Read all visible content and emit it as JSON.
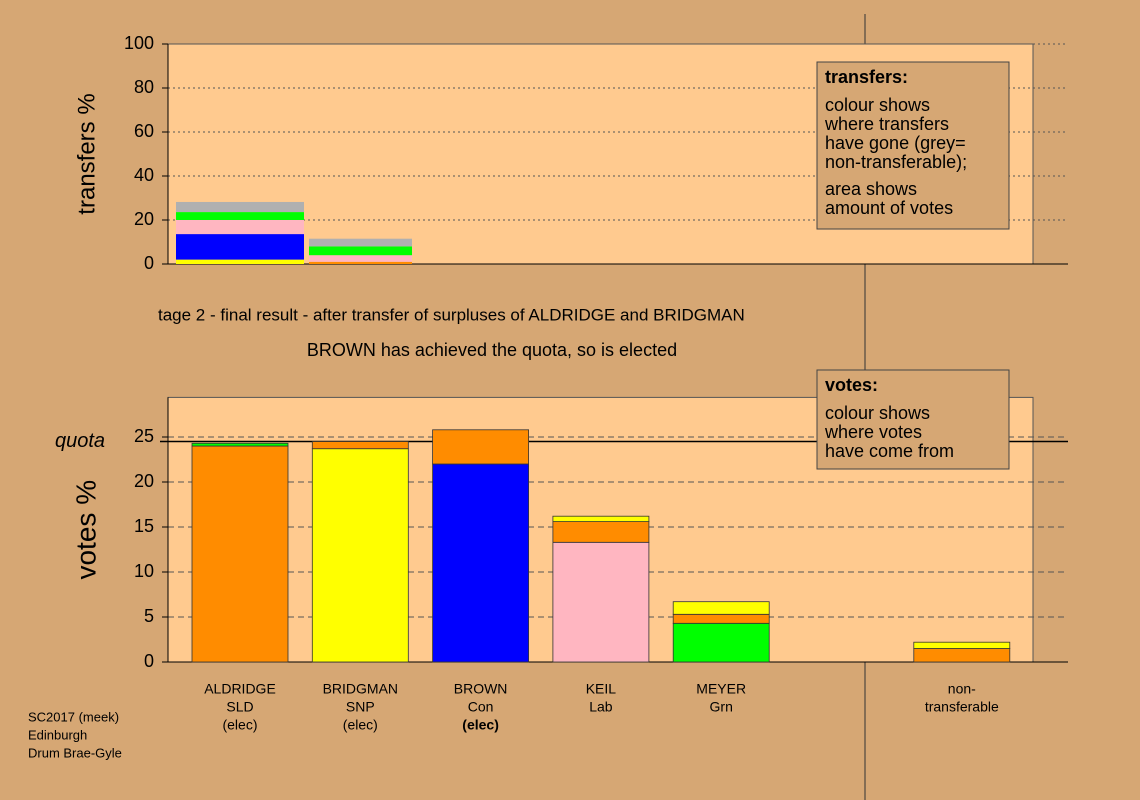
{
  "chart_data": [
    {
      "type": "bar",
      "ylabel": "transfers %",
      "ylim": [
        0,
        100
      ],
      "yticks": [
        0,
        20,
        40,
        60,
        80,
        100
      ],
      "grid": true,
      "categories": [
        null,
        null
      ],
      "series": [
        {
          "color": "#ff8c00",
          "values": [
            0,
            1
          ]
        },
        {
          "color": "#ffff00",
          "values": [
            2,
            0
          ]
        },
        {
          "color": "#0000ff",
          "values": [
            11.6,
            0
          ]
        },
        {
          "color": "#ffb6c1",
          "values": [
            6.4,
            3
          ]
        },
        {
          "color": "#00ff00",
          "values": [
            3.6,
            4
          ]
        },
        {
          "color": "#b0b0b0",
          "values": [
            4.6,
            3.5
          ]
        }
      ],
      "annotation": {
        "title": "transfers:",
        "paragraphs": [
          [
            "colour shows",
            "where transfers",
            "have gone (grey=",
            "non-transferable);"
          ],
          [
            "area shows",
            "amount of votes"
          ]
        ]
      }
    },
    {
      "type": "bar",
      "subtitle": "tage 2 - final result - after transfer of surpluses of ALDRIDGE and BRIDGMAN",
      "note": "BROWN has achieved the quota, so is elected",
      "ylabel": "votes %",
      "ylim": [
        0,
        29.4
      ],
      "yticks": [
        0,
        5,
        10,
        15,
        20,
        25
      ],
      "grid": true,
      "quota": {
        "label": "quota",
        "value": 24.5
      },
      "categories": [
        [
          "ALDRIDGE",
          "SLD",
          "(elec)"
        ],
        [
          "BRIDGMAN",
          "SNP",
          "(elec)"
        ],
        [
          "BROWN",
          "Con",
          "(elec)"
        ],
        [
          "KEIL",
          "Lab"
        ],
        [
          "MEYER",
          "Grn"
        ],
        [
          "non-",
          "transferable"
        ]
      ],
      "series": [
        {
          "color": "#ff8c00",
          "values": [
            24,
            0.8,
            3.8,
            2.3,
            1.0,
            1.5
          ]
        },
        {
          "color": "#ffff00",
          "values": [
            0,
            23.7,
            0,
            0.6,
            1.4,
            0.7
          ]
        },
        {
          "color": "#0000ff",
          "values": [
            0,
            0,
            22,
            0,
            0,
            0
          ]
        },
        {
          "color": "#ffb6c1",
          "values": [
            0,
            0,
            0,
            13.3,
            0,
            0
          ]
        },
        {
          "color": "#00ff00",
          "values": [
            0.3,
            0,
            0,
            0,
            4.3,
            0
          ]
        }
      ],
      "annotation": {
        "title": "votes:",
        "paragraphs": [
          [
            "colour shows",
            "where votes",
            "have come from"
          ]
        ]
      }
    }
  ],
  "footer": [
    "SC2017 (meek)",
    "Edinburgh",
    "Drum Brae-Gyle"
  ]
}
